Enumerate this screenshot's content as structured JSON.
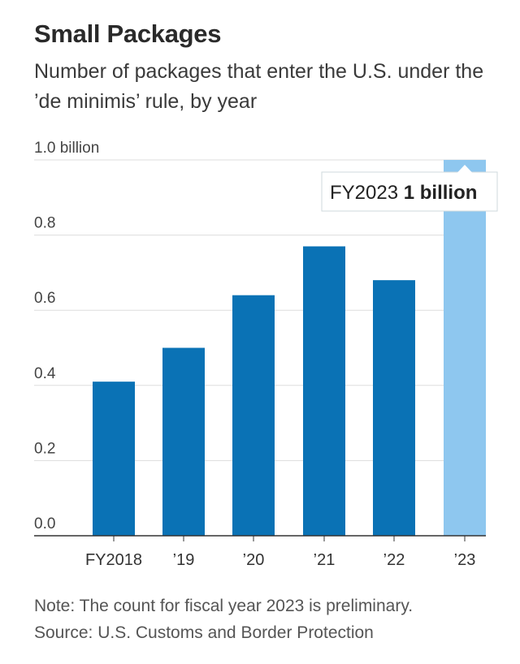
{
  "title": "Small Packages",
  "subtitle": "Number of packages that enter the U.S. under the ’de minimis’ rule, by year",
  "chart_data": {
    "type": "bar",
    "categories": [
      "FY2018",
      "’19",
      "’20",
      "’21",
      "’22",
      "’23"
    ],
    "values": [
      0.41,
      0.5,
      0.64,
      0.77,
      0.68,
      1.0
    ],
    "unit": "billion",
    "ylim": [
      0,
      1.0
    ],
    "yticks": [
      0.0,
      0.2,
      0.4,
      0.6,
      0.8,
      1.0
    ],
    "ytick_labels": [
      "0.0",
      "0.2",
      "0.4",
      "0.6",
      "0.8",
      "1.0 billion"
    ],
    "grid": true,
    "preliminary_index": 5,
    "annotation": {
      "label": "FY2023",
      "value_text": "1 billion"
    },
    "colors": {
      "bar": "#0a72b5",
      "bar_preliminary": "#8ec7ef",
      "grid": "#dddddd",
      "axis": "#333333"
    }
  },
  "note": "Note: The count for fiscal year 2023 is preliminary.",
  "source": "Source: U.S. Customs and Border Protection"
}
